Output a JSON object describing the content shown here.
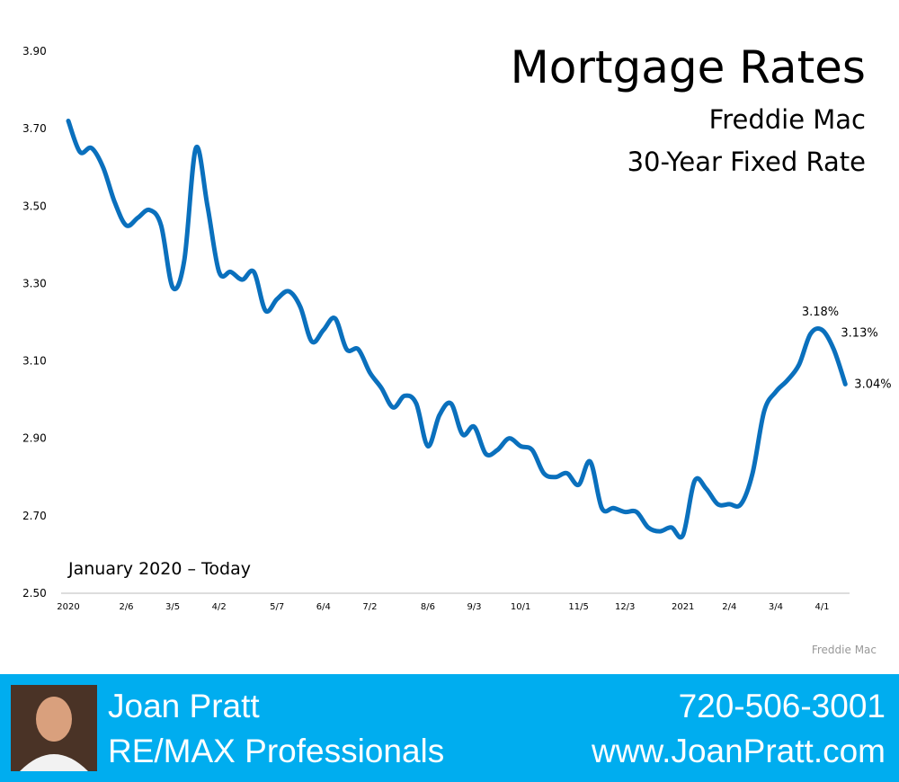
{
  "chart_data": {
    "type": "line",
    "title": "Mortgage Rates",
    "subtitle": [
      "Freddie Mac",
      "30-Year Fixed Rate"
    ],
    "annotation": "January 2020 – Today",
    "source": "Freddie Mac",
    "color": "#0a70bd",
    "categories": [
      "2020",
      null,
      null,
      null,
      null,
      "2/6",
      null,
      null,
      null,
      "3/5",
      null,
      null,
      null,
      "4/2",
      null,
      null,
      null,
      null,
      "5/7",
      null,
      null,
      null,
      "6/4",
      null,
      null,
      null,
      "7/2",
      null,
      null,
      null,
      null,
      "8/6",
      null,
      null,
      null,
      "9/3",
      null,
      null,
      null,
      "10/1",
      null,
      null,
      null,
      null,
      "11/5",
      null,
      null,
      null,
      "12/3",
      null,
      null,
      null,
      null,
      "2021",
      null,
      null,
      null,
      "2/4",
      null,
      null,
      null,
      "3/4",
      null,
      null,
      null,
      "4/1",
      null,
      null
    ],
    "values": [
      3.72,
      3.64,
      3.65,
      3.6,
      3.51,
      3.45,
      3.47,
      3.49,
      3.45,
      3.29,
      3.36,
      3.65,
      3.5,
      3.33,
      3.33,
      3.31,
      3.33,
      3.23,
      3.26,
      3.28,
      3.24,
      3.15,
      3.18,
      3.21,
      3.13,
      3.13,
      3.07,
      3.03,
      2.98,
      3.01,
      2.99,
      2.88,
      2.96,
      2.99,
      2.91,
      2.93,
      2.86,
      2.87,
      2.9,
      2.88,
      2.87,
      2.81,
      2.8,
      2.81,
      2.78,
      2.84,
      2.72,
      2.72,
      2.71,
      2.71,
      2.67,
      2.66,
      2.67,
      2.65,
      2.79,
      2.77,
      2.73,
      2.73,
      2.73,
      2.81,
      2.97,
      3.02,
      3.05,
      3.09,
      3.17,
      3.18,
      3.13,
      3.04
    ],
    "value_labels": [
      null,
      null,
      null,
      null,
      null,
      null,
      null,
      null,
      null,
      null,
      null,
      null,
      null,
      null,
      null,
      null,
      null,
      null,
      null,
      null,
      null,
      null,
      null,
      null,
      null,
      null,
      null,
      null,
      null,
      null,
      null,
      null,
      null,
      null,
      null,
      null,
      null,
      null,
      null,
      null,
      null,
      null,
      null,
      null,
      null,
      null,
      null,
      null,
      null,
      null,
      null,
      null,
      null,
      null,
      null,
      null,
      null,
      null,
      null,
      null,
      null,
      null,
      null,
      null,
      null,
      "3.18%",
      "3.13%",
      "3.04%"
    ],
    "ylim": [
      2.5,
      3.9
    ],
    "yticks": [
      {
        "value": 2.5,
        "label": "2.50"
      },
      {
        "value": 2.7,
        "label": "2.70"
      },
      {
        "value": 2.9,
        "label": "2.90"
      },
      {
        "value": 3.1,
        "label": "3.10"
      },
      {
        "value": 3.3,
        "label": "3.30"
      },
      {
        "value": 3.5,
        "label": "3.50"
      },
      {
        "value": 3.7,
        "label": "3.70"
      },
      {
        "value": 3.9,
        "label": "3.90"
      }
    ],
    "grid": false
  },
  "footer": {
    "name": "Joan Pratt",
    "company": "RE/MAX Professionals",
    "phone": "720-506-3001",
    "website": "www.JoanPratt.com"
  }
}
